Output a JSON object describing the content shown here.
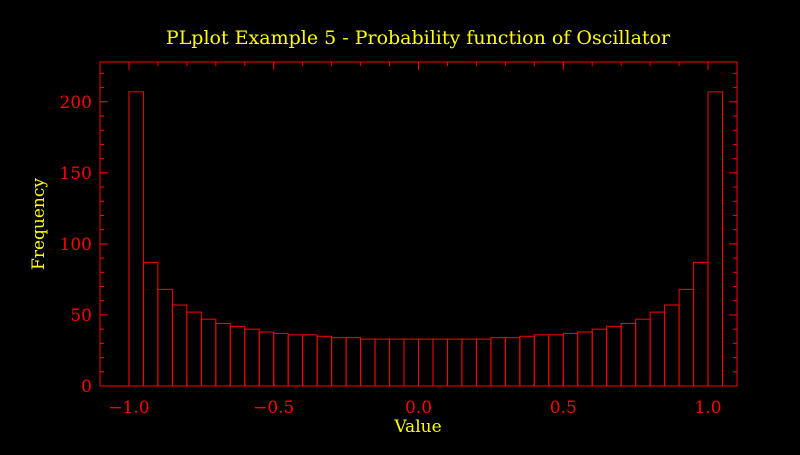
{
  "colors": {
    "background": "#000000",
    "axes": "#ff0000",
    "text": "#ffff00",
    "bars": "#ff0000"
  },
  "chart_data": {
    "type": "bar",
    "title": "PLplot Example 5 - Probability function of Oscillator",
    "xlabel": "Value",
    "ylabel": "Frequency",
    "xlim": [
      -1.1,
      1.1
    ],
    "ylim": [
      0,
      228
    ],
    "bin_start": -1.0,
    "bin_width": 0.05,
    "x_ticks": [
      {
        "value": -1.0,
        "label": "−1.0"
      },
      {
        "value": -0.5,
        "label": "−0.5"
      },
      {
        "value": 0.0,
        "label": "0.0"
      },
      {
        "value": 0.5,
        "label": "0.5"
      },
      {
        "value": 1.0,
        "label": "1.0"
      }
    ],
    "y_ticks": [
      {
        "value": 0,
        "label": "0"
      },
      {
        "value": 50,
        "label": "50"
      },
      {
        "value": 100,
        "label": "100"
      },
      {
        "value": 150,
        "label": "150"
      },
      {
        "value": 200,
        "label": "200"
      }
    ],
    "x_minor_step": 0.1,
    "y_minor_step": 10,
    "values": [
      207,
      87,
      68,
      57,
      52,
      47,
      44,
      42,
      40,
      38,
      37,
      36,
      36,
      35,
      34,
      34,
      33,
      33,
      33,
      33,
      33,
      33,
      33,
      33,
      33,
      34,
      34,
      35,
      36,
      36,
      37,
      38,
      40,
      42,
      44,
      47,
      52,
      57,
      68,
      87,
      207
    ]
  }
}
